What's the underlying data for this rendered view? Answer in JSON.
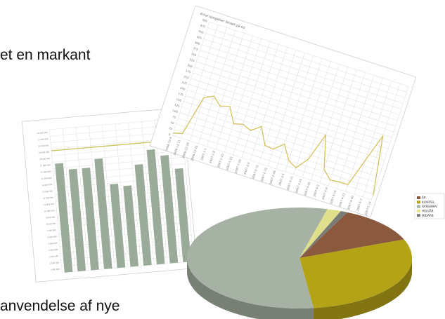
{
  "slide": {
    "text_top": "et en markant",
    "text_bottom": "anvendelse af nye"
  },
  "colors": {
    "bar": "#9aab99",
    "bar_line": "#c9c863",
    "line": "#d4c25c",
    "pie_aar": "#8b5a3e",
    "pie_kvartal": "#b4a217",
    "pie_rater": "#a6b2a3",
    "pie_halvaar": "#e0e08c",
    "pie_midarb": "#7a7a76"
  },
  "chart_data": [
    {
      "type": "bar",
      "title": "",
      "values": [
        19,
        17.8,
        17.8,
        19.2,
        14.6,
        14.1,
        17.6,
        20,
        18.8,
        16.3
      ],
      "reference_line": 21.3,
      "ylim": [
        0,
        25
      ],
      "ytick_labels": [
        "22 000 000",
        "21 000 000",
        "20 000 000",
        "19 000 000",
        "18 000 000",
        "17 000 000",
        "16 000 000",
        "15 000 000",
        "14 000 000",
        "13 000 000",
        "12 000 000",
        "11 000 000",
        "10 000 000",
        "9 000 000",
        "8 000 000",
        "7 000 000",
        "6 000 000",
        "5 000 000",
        "4 000 000",
        "3 000 000",
        "2 000 000",
        "1 000 000"
      ],
      "grid": true
    },
    {
      "type": "line",
      "title": "Antal opsigelser fordelt på tid",
      "ylim": [
        0,
        500
      ],
      "ytick_labels": [
        "500",
        "475",
        "450",
        "425",
        "400",
        "375",
        "350",
        "325",
        "300",
        "275",
        "250",
        "225",
        "200",
        "175",
        "150",
        "125",
        "100",
        "75",
        "50",
        "25",
        "0"
      ],
      "x": [
        "2006-12-4",
        "2006-12-11",
        "2006-12-18",
        "2006-12-25",
        "2007-1-1",
        "2007-1-8",
        "2007-1-15",
        "2007-1-22",
        "2007-1-29",
        "2007-2-5",
        "2007-2-12",
        "2007-2-19",
        "2007-2-26",
        "2007-3-5",
        "2007-3-12",
        "2007-3-19",
        "2007-3-26",
        "2007-4-2",
        "2007-4-9",
        "2007-4-16",
        "2007-4-23",
        "2007-4-30",
        "2007-5-7",
        "2007-5-14"
      ],
      "values": [
        10,
        20,
        190,
        210,
        178,
        190,
        125,
        135,
        120,
        150,
        80,
        75,
        110,
        50,
        30,
        80,
        200,
        60,
        25,
        30,
        30,
        150,
        270,
        20
      ],
      "grid": true
    },
    {
      "type": "pie",
      "labels": [
        "ÅR",
        "KVARTAL",
        "RATEERHV",
        "HALVÅR",
        "MIDARB"
      ],
      "values": [
        12,
        29,
        56,
        2,
        1
      ],
      "legend": "right"
    }
  ]
}
